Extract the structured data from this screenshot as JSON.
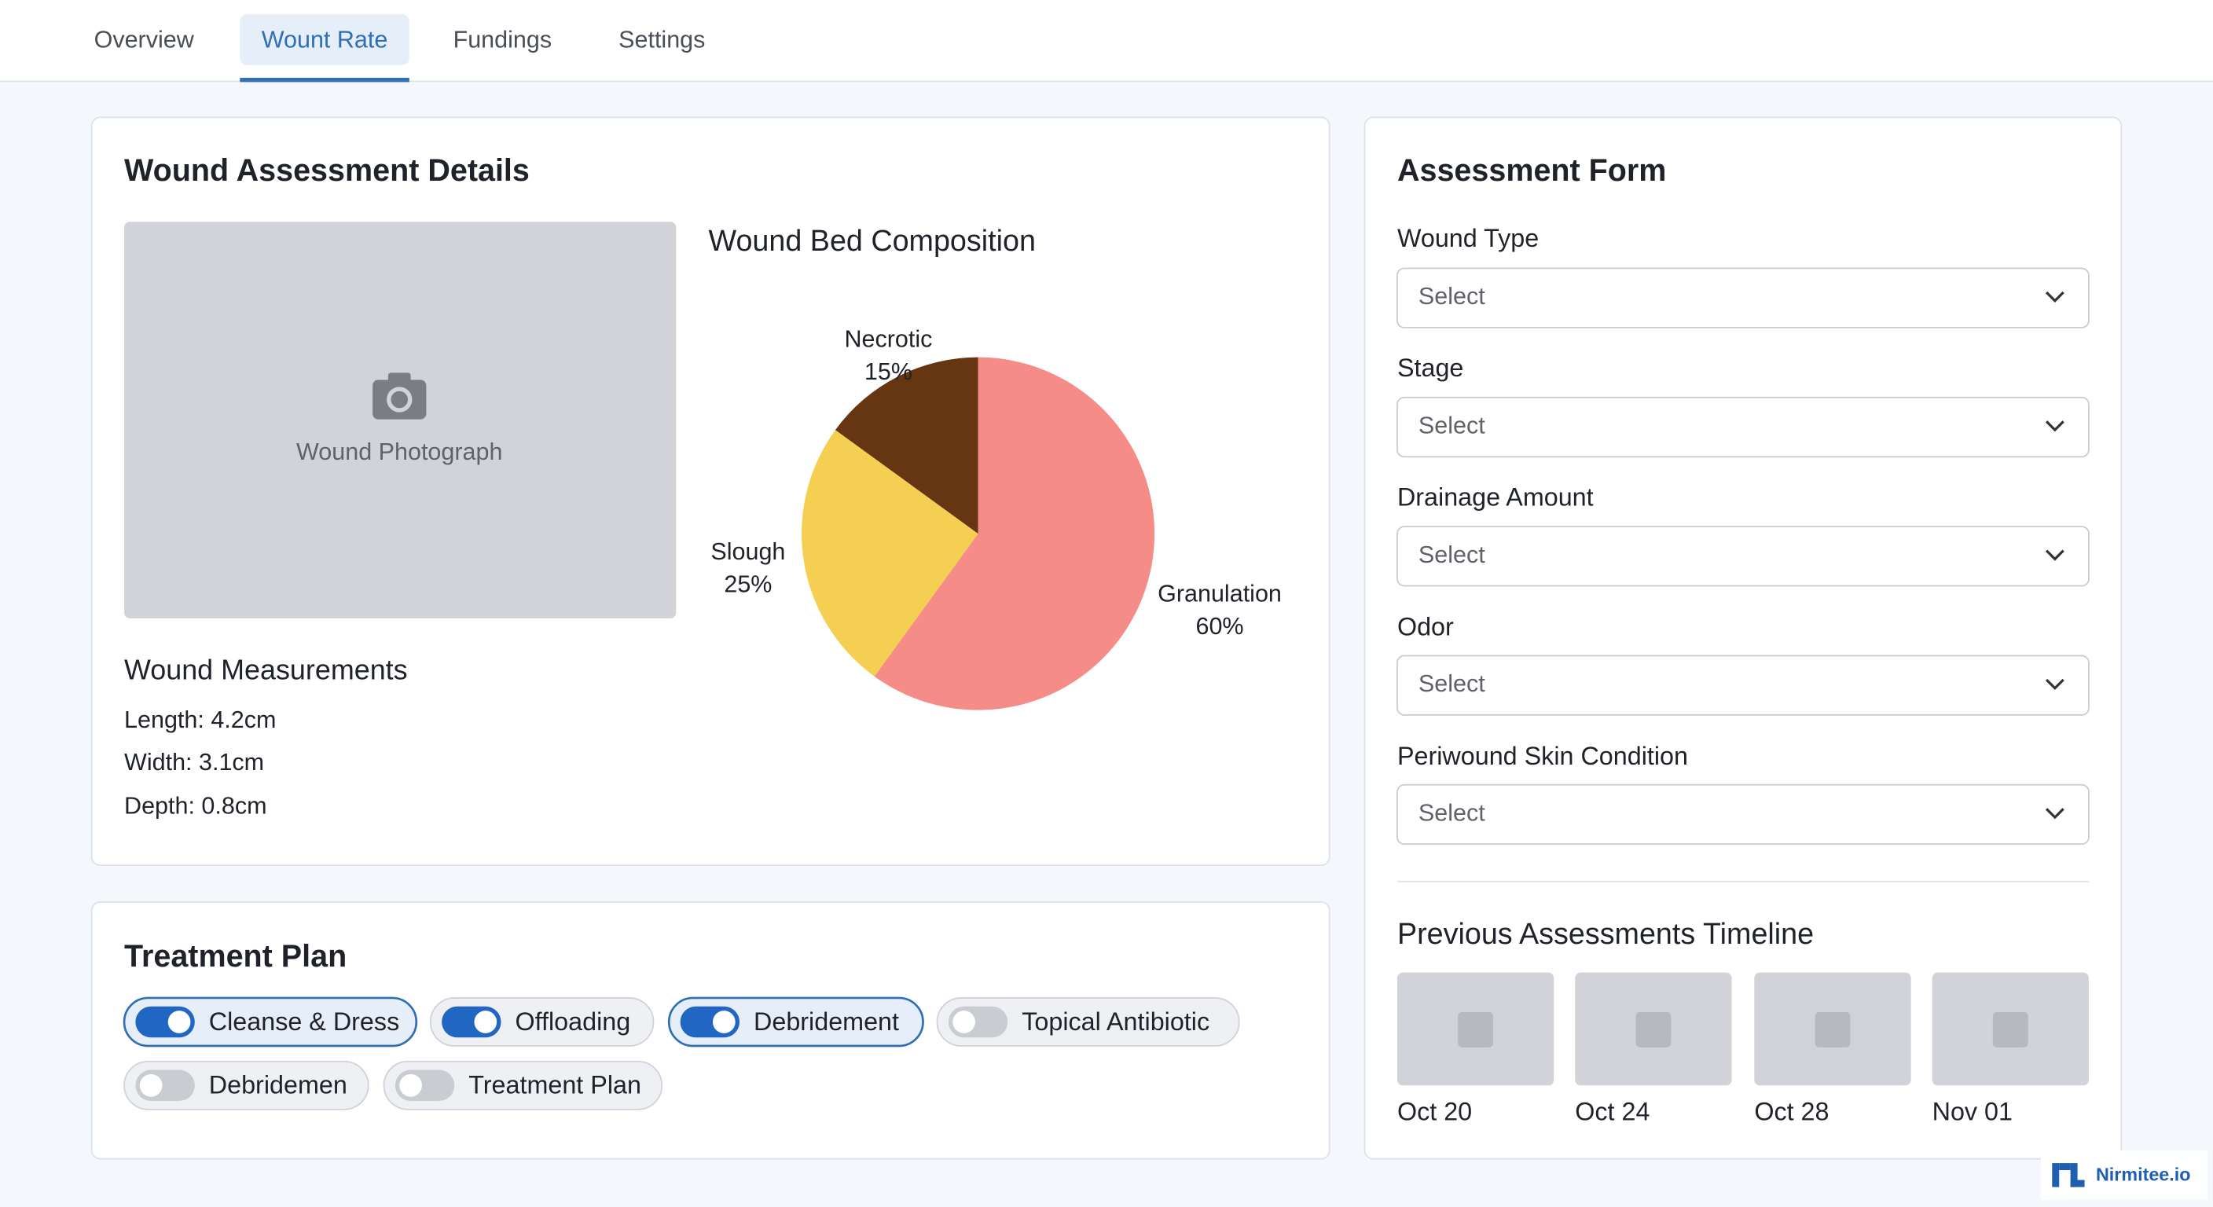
{
  "tabs": [
    {
      "label": "Overview",
      "active": false
    },
    {
      "label": "Wount Rate",
      "active": true
    },
    {
      "label": "Fundings",
      "active": false
    },
    {
      "label": "Settings",
      "active": false
    }
  ],
  "details": {
    "title": "Wound Assessment Details",
    "photo_label": "Wound Photograph",
    "measurements_title": "Wound Measurements",
    "measurements": [
      "Length: 4.2cm",
      "Width: 3.1cm",
      "Depth: 0.8cm"
    ]
  },
  "chart_data": {
    "type": "pie",
    "title": "Wound Bed Composition",
    "categories": [
      "Granulation",
      "Slough",
      "Necrotic"
    ],
    "values": [
      60,
      25,
      15
    ],
    "value_labels": [
      "60%",
      "25%",
      "15%"
    ],
    "colors": [
      "#f58c87",
      "#f5cf52",
      "#663613"
    ]
  },
  "treatment": {
    "title": "Treatment Plan",
    "options": [
      {
        "label": "Cleanse & Dress",
        "on": true,
        "selected": true
      },
      {
        "label": "Offloading",
        "on": true,
        "selected": false
      },
      {
        "label": "Debridement",
        "on": true,
        "selected": true
      },
      {
        "label": "Topical Antibiotic",
        "on": false,
        "selected": false
      },
      {
        "label": "Debridemen",
        "on": false,
        "selected": false
      },
      {
        "label": "Treatment Plan",
        "on": false,
        "selected": false
      }
    ]
  },
  "form": {
    "title": "Assessment Form",
    "fields": [
      {
        "label": "Wound Type",
        "placeholder": "Select"
      },
      {
        "label": "Stage",
        "placeholder": "Select"
      },
      {
        "label": "Drainage Amount",
        "placeholder": "Select"
      },
      {
        "label": "Odor",
        "placeholder": "Select"
      },
      {
        "label": "Periwound Skin Condition",
        "placeholder": "Select"
      }
    ]
  },
  "timeline": {
    "title": "Previous Assessments Timeline",
    "dates": [
      "Oct 20",
      "Oct 24",
      "Oct 28",
      "Nov 01"
    ]
  },
  "brand": "Nirmitee.io"
}
